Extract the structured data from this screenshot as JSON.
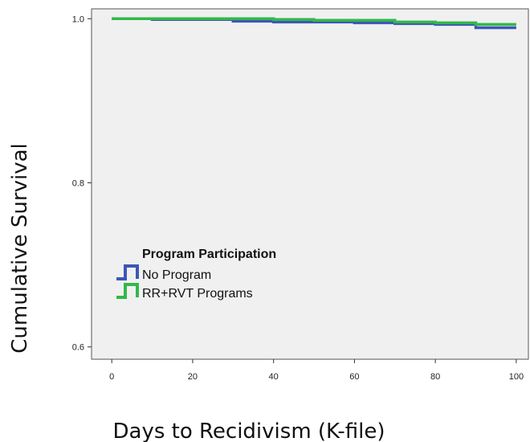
{
  "chart_data": {
    "type": "line",
    "step": true,
    "xlabel": "Days to Recidivism (K-file)",
    "ylabel": "Cumulative Survival",
    "xlim": [
      -5,
      103
    ],
    "ylim": [
      0.585,
      1.012
    ],
    "xticks": [
      0,
      20,
      40,
      60,
      80,
      100
    ],
    "yticks": [
      0.6,
      0.8,
      1.0
    ],
    "x_tick_labels": [
      "0",
      "20",
      "40",
      "60",
      "80",
      "100"
    ],
    "y_tick_labels": [
      "0.6",
      "0.8",
      "1.0"
    ],
    "grid": false,
    "legend": {
      "title": "Program Participation",
      "placement": "center-left"
    },
    "series": [
      {
        "name": "No Program",
        "color": "#3c57b6",
        "x": [
          0,
          10,
          30,
          40,
          60,
          70,
          80,
          90,
          100
        ],
        "y": [
          1.0,
          0.999,
          0.997,
          0.996,
          0.995,
          0.994,
          0.993,
          0.989,
          0.989
        ]
      },
      {
        "name": "RR+RVT Programs",
        "color": "#33b84a",
        "x": [
          0,
          10,
          40,
          50,
          70,
          80,
          90,
          100
        ],
        "y": [
          1.0,
          1.0,
          0.999,
          0.998,
          0.996,
          0.995,
          0.993,
          0.993
        ]
      }
    ],
    "plot_background": "#f0f0f0"
  }
}
